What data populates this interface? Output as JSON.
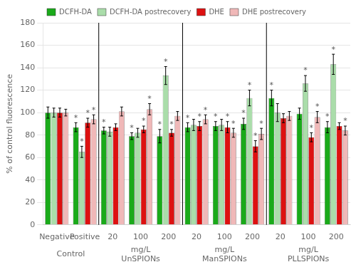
{
  "chart_data": {
    "type": "bar",
    "categories": [
      "Negative",
      "Positive",
      "20",
      "100",
      "200",
      "20",
      "100",
      "200",
      "20",
      "100",
      "200"
    ],
    "series": [
      {
        "name": "DCFH-DA",
        "color": "#1aaa1a",
        "values": [
          100,
          87,
          84,
          79,
          79,
          87,
          88,
          90,
          113,
          99,
          87
        ],
        "errors": [
          5,
          4,
          3,
          3,
          6,
          4,
          4,
          5,
          7,
          5,
          5
        ],
        "significance": [
          0,
          1,
          1,
          1,
          1,
          1,
          1,
          1,
          1,
          0,
          1
        ]
      },
      {
        "name": "DCFH-DA postrecovery",
        "color": "#aaddaa",
        "values": [
          100,
          65,
          83,
          82,
          133,
          89,
          89,
          113,
          100,
          126,
          143
        ],
        "errors": [
          4,
          5,
          4,
          4,
          8,
          5,
          5,
          7,
          8,
          7,
          9
        ],
        "significance": [
          0,
          1,
          0,
          0,
          1,
          0,
          0,
          1,
          0,
          1,
          1
        ]
      },
      {
        "name": "DHE",
        "color": "#dd1111",
        "values": [
          100,
          91,
          87,
          85,
          82,
          88,
          87,
          70,
          95,
          78,
          88
        ],
        "errors": [
          4,
          4,
          3,
          3,
          3,
          4,
          5,
          5,
          4,
          4,
          3
        ],
        "significance": [
          0,
          1,
          0,
          1,
          1,
          1,
          1,
          1,
          0,
          1,
          0
        ]
      },
      {
        "name": "DHE postrecovery",
        "color": "#f0b8b8",
        "values": [
          100,
          94,
          101,
          103,
          97,
          94,
          82,
          81,
          97,
          96,
          84
        ],
        "errors": [
          3,
          4,
          4,
          5,
          4,
          4,
          4,
          5,
          4,
          5,
          4
        ],
        "significance": [
          0,
          1,
          0,
          1,
          0,
          1,
          1,
          1,
          0,
          1,
          1
        ]
      }
    ],
    "significance_mark": "*",
    "section_labels": [
      {
        "label": "Control",
        "start": 0,
        "end": 1
      },
      {
        "label": "UnSPIONs",
        "unit": "mg/L",
        "start": 2,
        "end": 4
      },
      {
        "label": "ManSPIONs",
        "unit": "mg/L",
        "start": 5,
        "end": 7
      },
      {
        "label": "PLLSPIONs",
        "unit": "mg/L",
        "start": 8,
        "end": 10
      }
    ],
    "ylabel": "% of control fluorescence",
    "ylim": [
      0,
      180
    ],
    "yticks": [
      0,
      20,
      40,
      60,
      80,
      100,
      120,
      140,
      160,
      180
    ],
    "grid": true,
    "legend": "top"
  }
}
